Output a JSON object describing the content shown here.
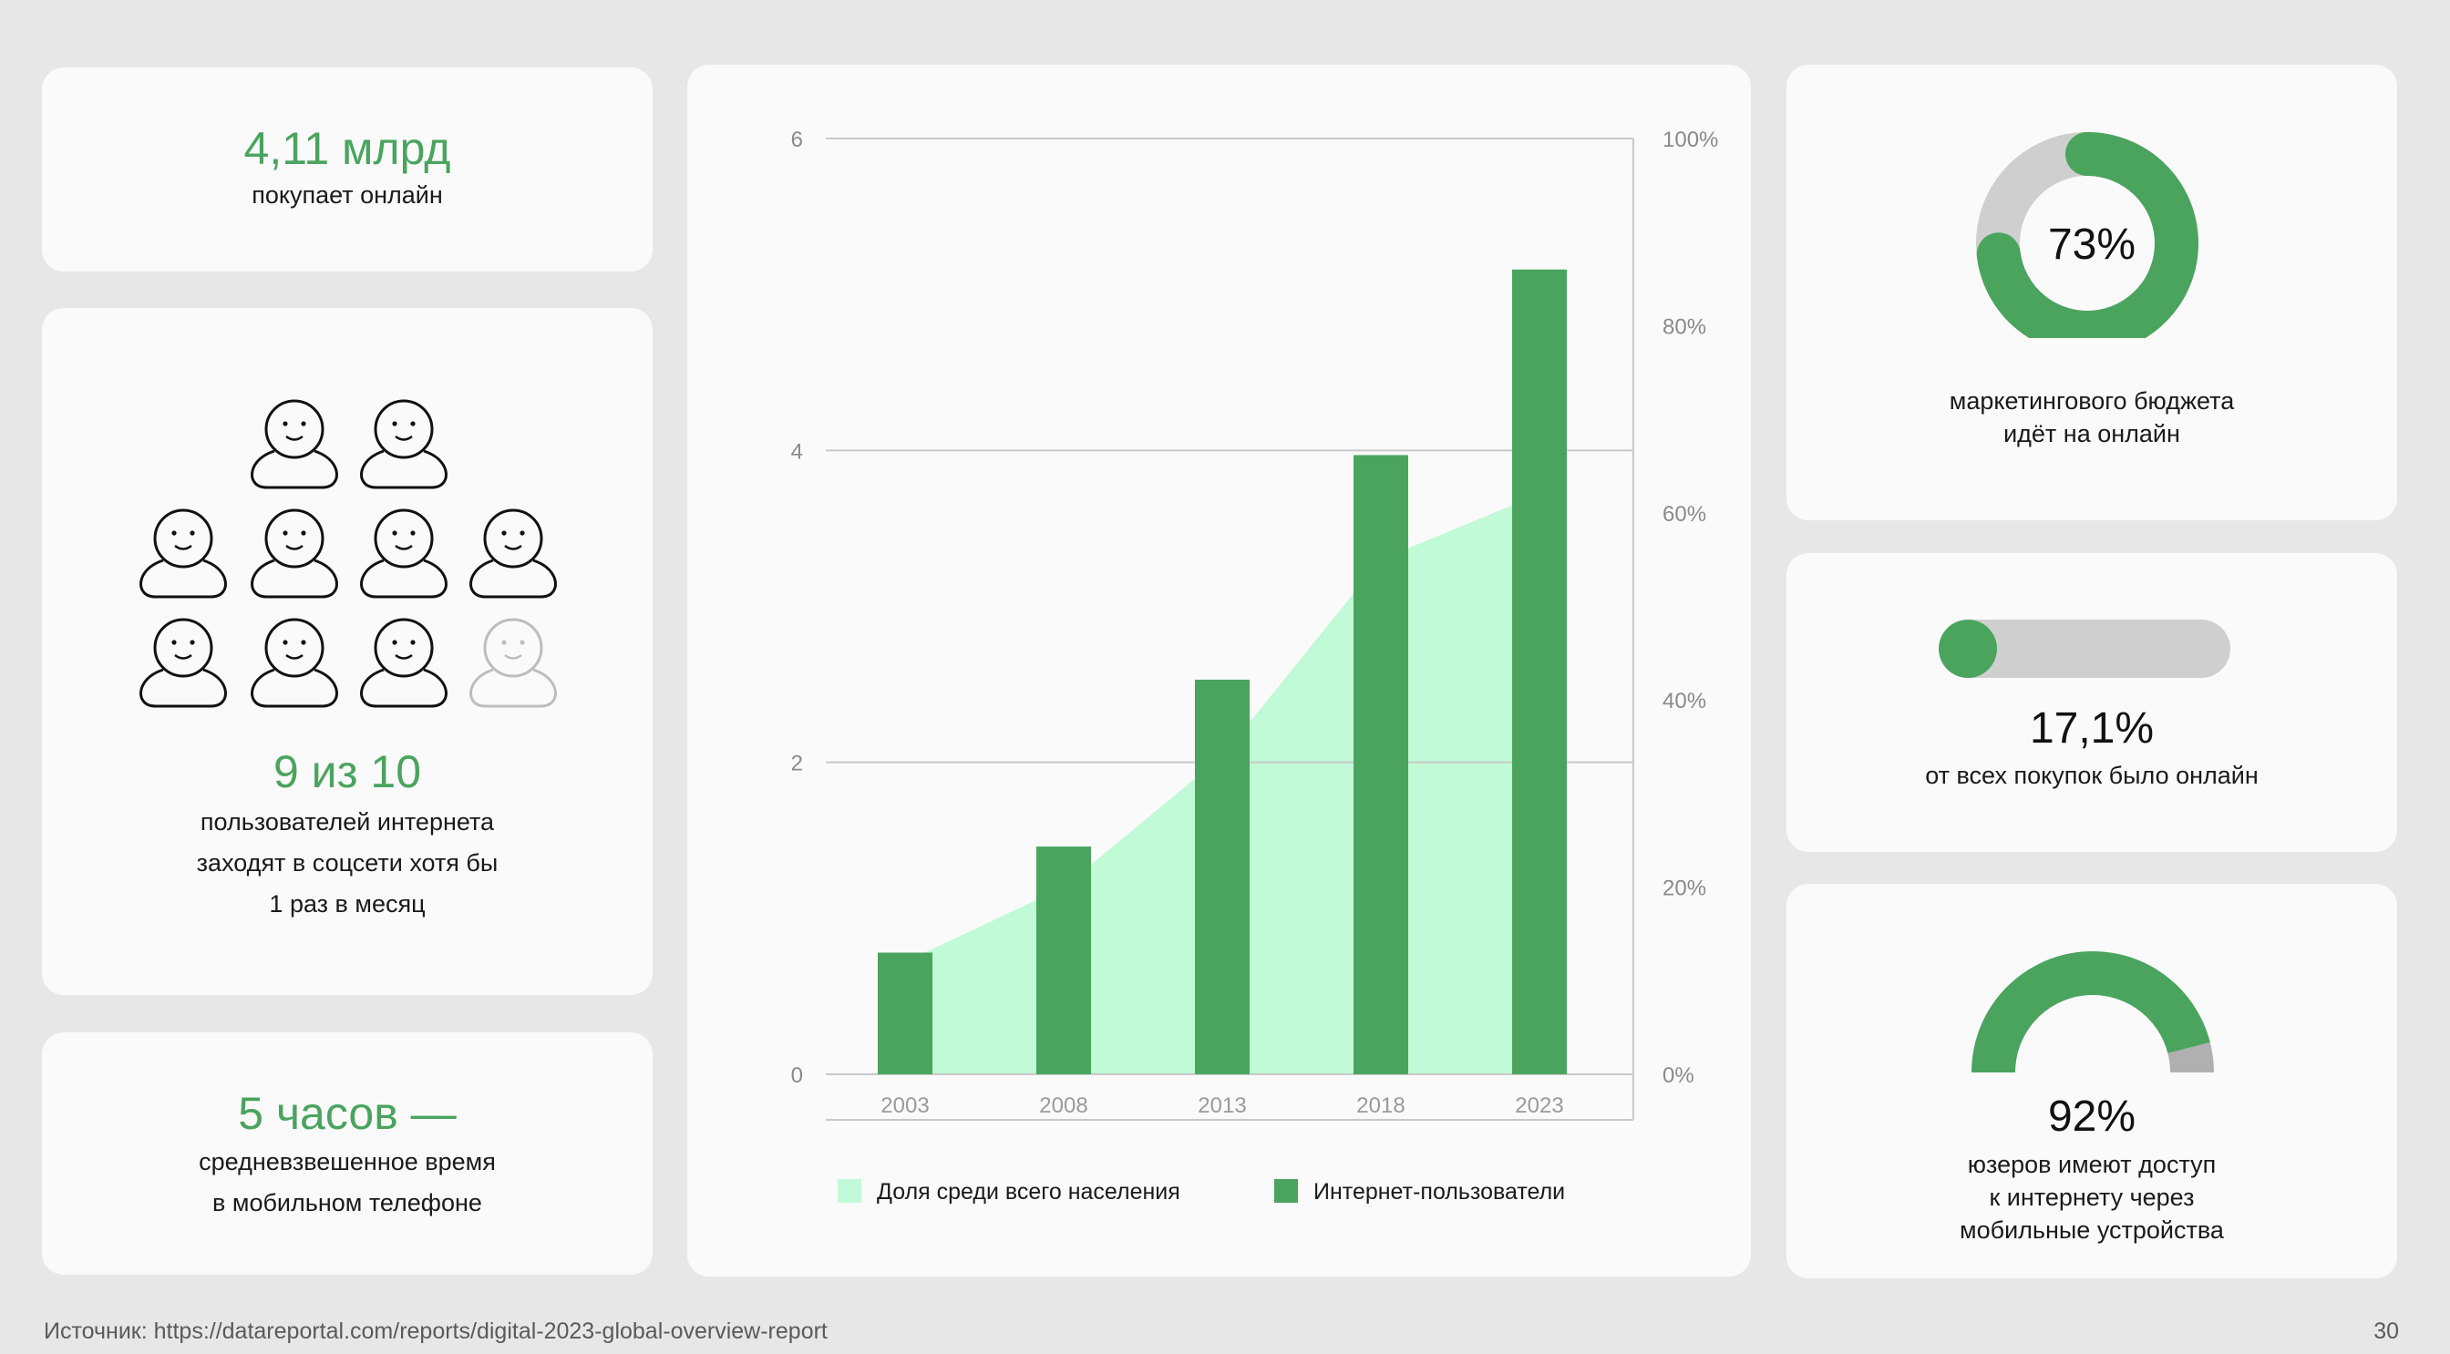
{
  "stat_online_buyers": {
    "value": "4,11 млрд",
    "label": "покупает онлайн"
  },
  "stat_social": {
    "value": "9 из 10",
    "label_lines": [
      "пользователей интернета",
      "заходят в соцсети хотя бы",
      "1 раз в месяц"
    ],
    "people_active": 9,
    "people_total": 10
  },
  "stat_mobile_time": {
    "value": "5 часов —",
    "label_lines": [
      "средневзвешенное время",
      "в мобильном телефоне"
    ]
  },
  "stat_budget": {
    "value": "73%",
    "fraction": 0.73,
    "label_lines": [
      "маркетингового бюджета",
      "идёт на онлайн"
    ]
  },
  "stat_purchases": {
    "value": "17,1%",
    "fraction": 0.171,
    "label": "от всех покупок было онлайн"
  },
  "stat_mobile_access": {
    "value": "92%",
    "fraction": 0.92,
    "label_lines": [
      "юзеров имеют доступ",
      "к интернету через",
      "мобильные устройства"
    ]
  },
  "colors": {
    "green": "#4aa45e",
    "light_green": "#c1fad6",
    "gray": "#cfcfcf",
    "dark_gray": "#b0b0b0",
    "background": "#e7e7e7",
    "card": "#fafafa"
  },
  "chart_data": {
    "type": "bar",
    "categories": [
      "2003",
      "2008",
      "2013",
      "2018",
      "2023"
    ],
    "series": [
      {
        "name": "Доля среди всего населения",
        "type": "area",
        "axis": "right",
        "values": [
          12,
          20,
          34,
          55,
          62
        ]
      },
      {
        "name": "Интернет-пользователи",
        "type": "bar",
        "axis": "left",
        "values": [
          0.78,
          1.46,
          2.53,
          3.97,
          5.16
        ]
      }
    ],
    "ylim_left": [
      0,
      6
    ],
    "left_ticks": [
      "0",
      "2",
      "4",
      "6"
    ],
    "ylim_right": [
      0,
      100
    ],
    "right_ticks": [
      "0%",
      "20%",
      "40%",
      "60%",
      "80%",
      "100%"
    ],
    "grid": true,
    "legend": "bottom"
  },
  "footer": {
    "source": "Источник: https://datareportal.com/reports/digital-2023-global-overview-report",
    "page": "30"
  }
}
